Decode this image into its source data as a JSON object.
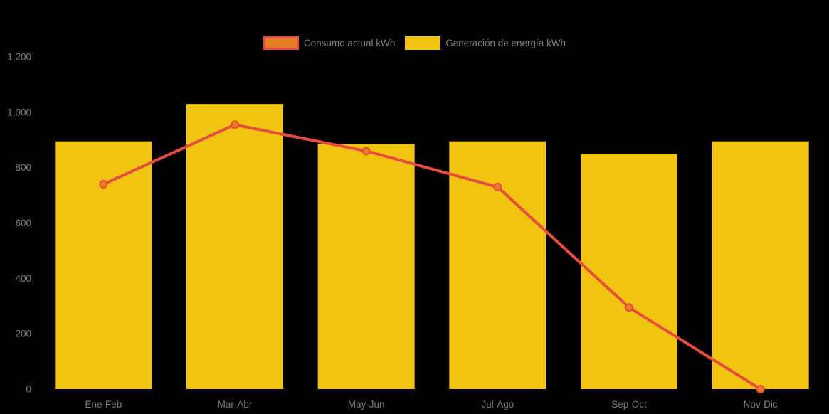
{
  "colors": {
    "background": "#000000",
    "axis_text": "#7e7e7e",
    "bar_yellow": "#f1c40f",
    "line_red": "#e74c3c",
    "marker_orange": "#e67e22"
  },
  "legend": {
    "items": [
      {
        "label": "Consumo actual kWh",
        "swatch_fill": "#e67e22",
        "swatch_border": "#e74c3c"
      },
      {
        "label": "Generación de energía kWh",
        "swatch_fill": "#f1c40f",
        "swatch_border": ""
      }
    ]
  },
  "chart_data": {
    "type": "bar",
    "subtype": "bar+line combo",
    "title": "",
    "xlabel": "",
    "ylabel": "",
    "categories": [
      "Ene-Feb",
      "Mar-Abr",
      "May-Jun",
      "Jul-Ago",
      "Sep-Oct",
      "Nov-Dic"
    ],
    "series": [
      {
        "name": "Consumo actual kWh",
        "type": "line",
        "color": "#e74c3c",
        "marker_fill": "#e67e22",
        "values": [
          740,
          955,
          860,
          730,
          295,
          0
        ]
      },
      {
        "name": "Generación de energía kWh",
        "type": "bar",
        "color": "#f1c40f",
        "values": [
          895,
          1030,
          885,
          895,
          850,
          895
        ]
      }
    ],
    "ylim": [
      0,
      1200
    ],
    "yticks": [
      0,
      200,
      400,
      600,
      800,
      1000,
      1200
    ],
    "ytick_labels": [
      "0",
      "200",
      "400",
      "600",
      "800",
      "1,000",
      "1,200"
    ],
    "grid": false,
    "axis_lines": false,
    "legend_position": "top-center"
  }
}
